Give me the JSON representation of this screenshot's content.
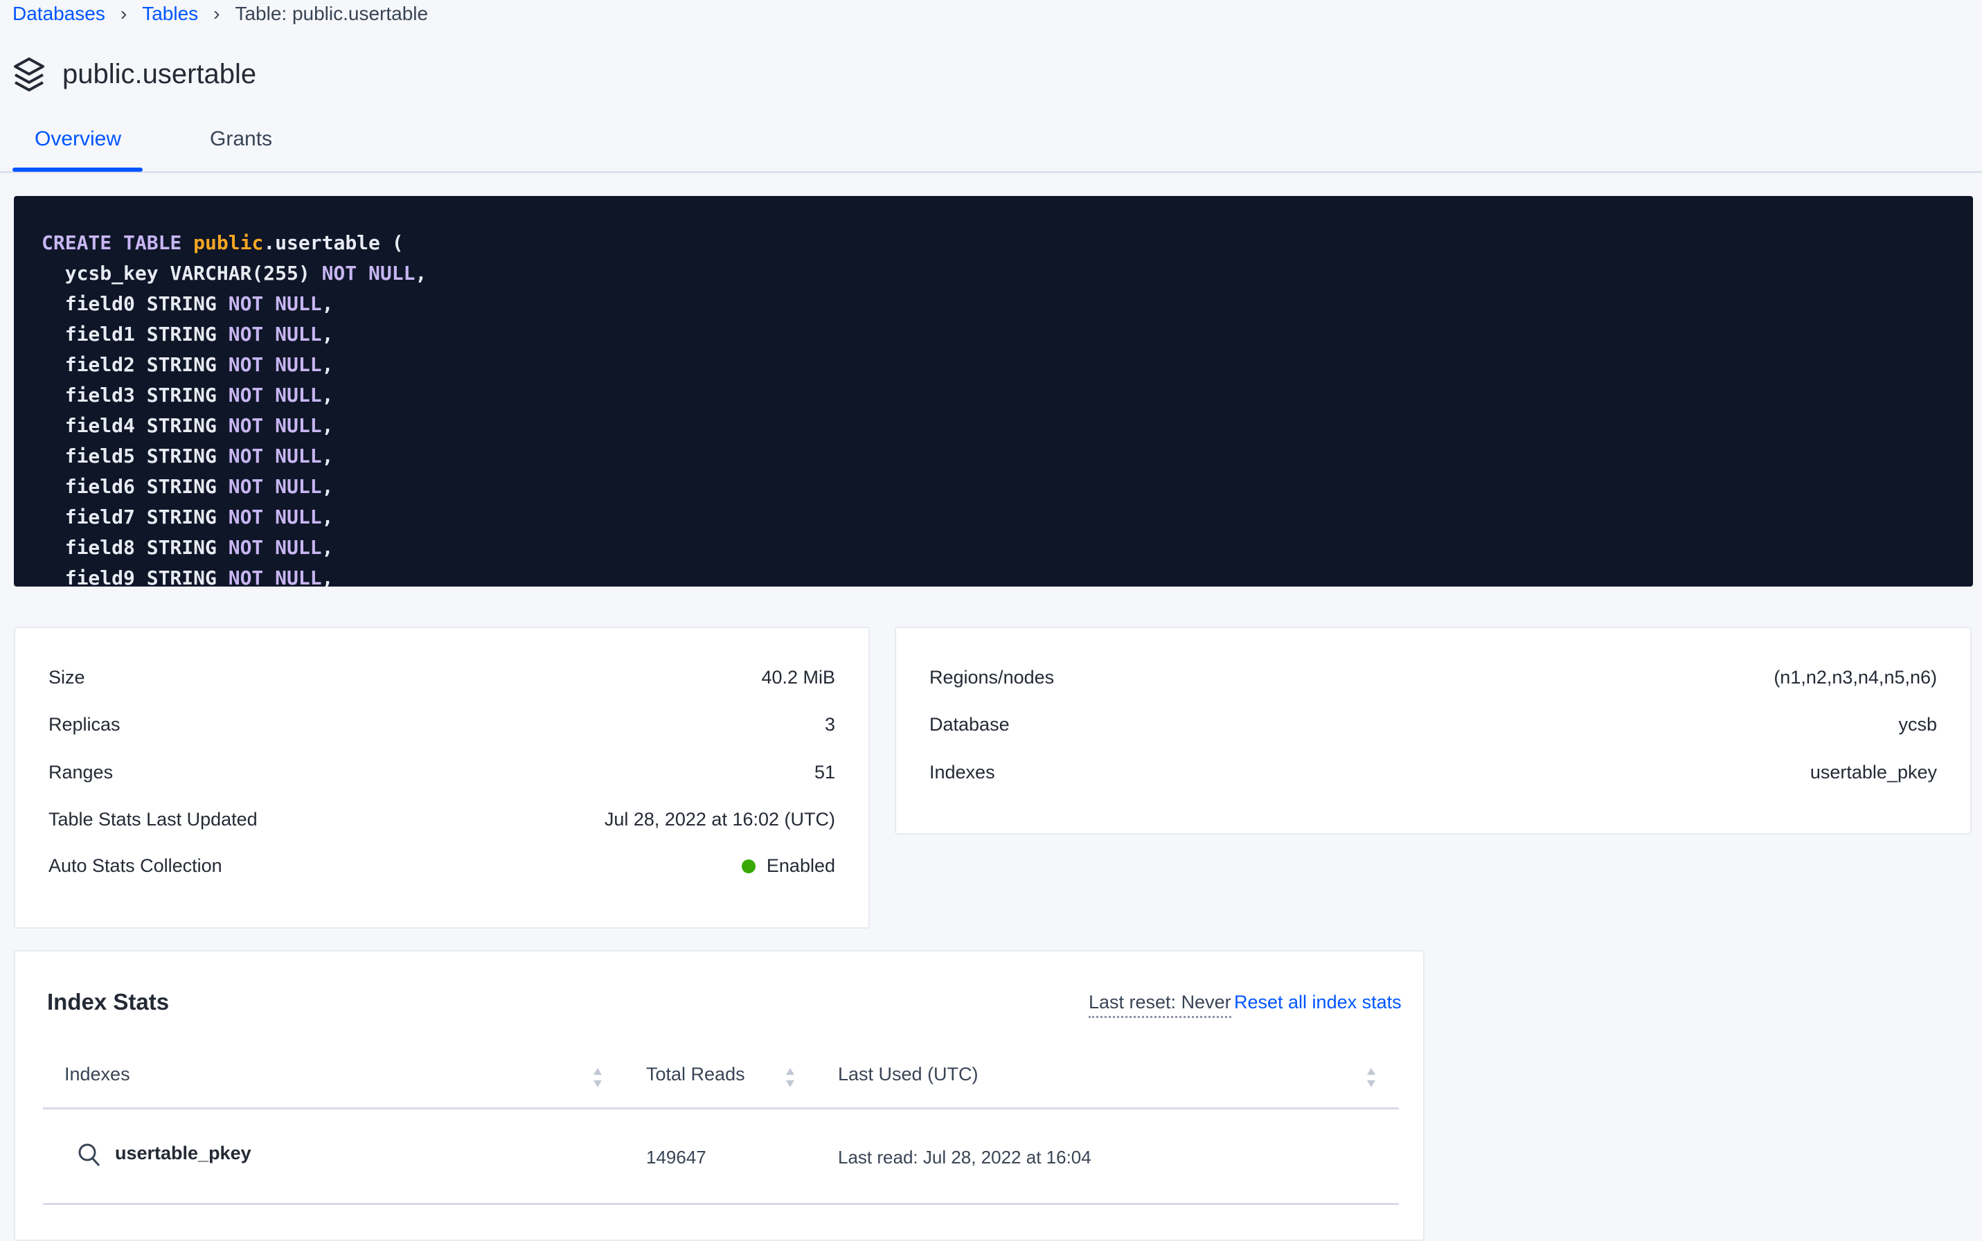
{
  "breadcrumb": {
    "items": [
      "Databases",
      "Tables"
    ],
    "current": "Table: public.usertable"
  },
  "page": {
    "title": "public.usertable",
    "icon": "stack-icon"
  },
  "tabs": [
    {
      "label": "Overview",
      "active": true
    },
    {
      "label": "Grants",
      "active": false
    }
  ],
  "ddl": {
    "lines": [
      [
        [
          "kw",
          "CREATE TABLE "
        ],
        [
          "sc",
          "public"
        ],
        [
          "t",
          ".usertable ("
        ]
      ],
      [
        [
          "t",
          "  ycsb_key VARCHAR(255) "
        ],
        [
          "kw",
          "NOT NULL"
        ],
        [
          "t",
          ","
        ]
      ],
      [
        [
          "t",
          "  field0 STRING "
        ],
        [
          "kw",
          "NOT NULL"
        ],
        [
          "t",
          ","
        ]
      ],
      [
        [
          "t",
          "  field1 STRING "
        ],
        [
          "kw",
          "NOT NULL"
        ],
        [
          "t",
          ","
        ]
      ],
      [
        [
          "t",
          "  field2 STRING "
        ],
        [
          "kw",
          "NOT NULL"
        ],
        [
          "t",
          ","
        ]
      ],
      [
        [
          "t",
          "  field3 STRING "
        ],
        [
          "kw",
          "NOT NULL"
        ],
        [
          "t",
          ","
        ]
      ],
      [
        [
          "t",
          "  field4 STRING "
        ],
        [
          "kw",
          "NOT NULL"
        ],
        [
          "t",
          ","
        ]
      ],
      [
        [
          "t",
          "  field5 STRING "
        ],
        [
          "kw",
          "NOT NULL"
        ],
        [
          "t",
          ","
        ]
      ],
      [
        [
          "t",
          "  field6 STRING "
        ],
        [
          "kw",
          "NOT NULL"
        ],
        [
          "t",
          ","
        ]
      ],
      [
        [
          "t",
          "  field7 STRING "
        ],
        [
          "kw",
          "NOT NULL"
        ],
        [
          "t",
          ","
        ]
      ],
      [
        [
          "t",
          "  field8 STRING "
        ],
        [
          "kw",
          "NOT NULL"
        ],
        [
          "t",
          ","
        ]
      ],
      [
        [
          "t",
          "  field9 STRING "
        ],
        [
          "kw",
          "NOT NULL"
        ],
        [
          "t",
          ","
        ]
      ]
    ]
  },
  "summary_left": [
    {
      "label": "Size",
      "value": "40.2 MiB"
    },
    {
      "label": "Replicas",
      "value": "3"
    },
    {
      "label": "Ranges",
      "value": "51"
    },
    {
      "label": "Table Stats Last Updated",
      "value": "Jul 28, 2022 at 16:02 (UTC)"
    },
    {
      "label": "Auto Stats Collection",
      "value": "Enabled",
      "status_color": "#37a806"
    }
  ],
  "summary_right": [
    {
      "label": "Regions/nodes",
      "value": "(n1,n2,n3,n4,n5,n6)"
    },
    {
      "label": "Database",
      "value": "ycsb"
    },
    {
      "label": "Indexes",
      "value": "usertable_pkey"
    }
  ],
  "index_stats": {
    "title": "Index Stats",
    "last_reset": "Last reset: Never",
    "reset_link": "Reset all index stats",
    "columns": [
      "Indexes",
      "Total Reads",
      "Last Used (UTC)"
    ],
    "rows": [
      {
        "index": "usertable_pkey",
        "total_reads": "149647",
        "last_used": "Last read: Jul 28, 2022 at 16:04"
      }
    ]
  },
  "colors": {
    "accent": "#0055ff",
    "code_bg": "#0e1628",
    "keyword": "#c8b6f2",
    "schema": "#f5a623"
  }
}
